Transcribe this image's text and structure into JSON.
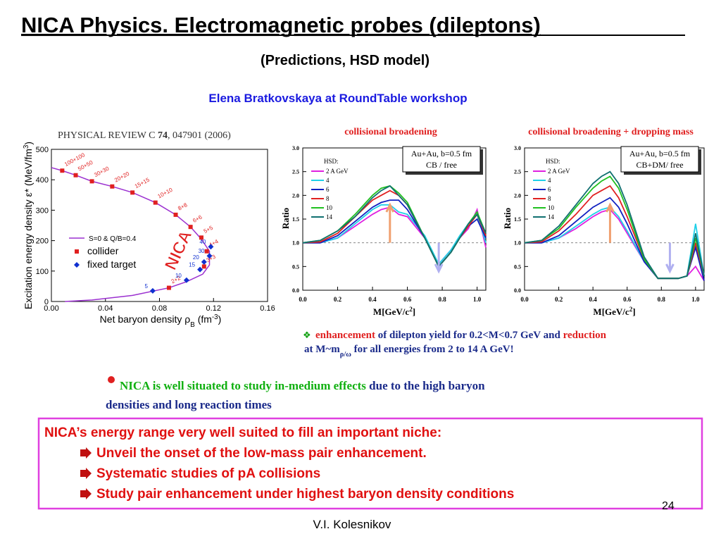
{
  "title": "NICA Physics. Electromagnetic probes (dileptons)",
  "subtitle": "(Predictions, HSD model)",
  "credit": "Elena Bratkovskaya at RoundTable workshop",
  "eos_chart": {
    "type": "scatter",
    "header": [
      "PHYSICAL REVIEW C ",
      "74",
      ", 047901 (2006)"
    ],
    "x_label": [
      "Net baryon density ρ",
      "B",
      " (fm",
      "-3",
      ")"
    ],
    "y_label": [
      "Excitation energy density ε* (MeV/fm",
      "3",
      ")"
    ],
    "xlim": [
      0,
      0.16
    ],
    "xticks": [
      {
        "value": 0,
        "label": "0.00"
      },
      0.04,
      0.08,
      0.12,
      0.16
    ],
    "ylim": [
      0,
      500
    ],
    "yticks": [
      0,
      100,
      200,
      300,
      400,
      500
    ],
    "annotation": "NICA",
    "series": [
      {
        "name": "S=0 & Q/B=0.4",
        "color": "#9b30d0",
        "kind": "line",
        "x": [
          0,
          0.008,
          0.018,
          0.03,
          0.045,
          0.06,
          0.077,
          0.092,
          0.103,
          0.111,
          0.117,
          0.117,
          0.112,
          0.1,
          0.087,
          0.06,
          0.03,
          0.01
        ],
        "values": [
          440,
          430,
          415,
          395,
          378,
          358,
          325,
          285,
          245,
          205,
          165,
          120,
          90,
          65,
          45,
          20,
          5,
          0
        ]
      },
      {
        "name": "collider",
        "color": "#e02020",
        "kind": "square",
        "x": [
          0.008,
          0.018,
          0.03,
          0.045,
          0.06,
          0.077,
          0.092,
          0.103,
          0.111,
          0.115,
          0.113,
          0.087
        ],
        "values": [
          430,
          415,
          395,
          378,
          358,
          325,
          285,
          245,
          210,
          165,
          115,
          45
        ],
        "point_labels": [
          "100+100",
          "50+50",
          "30+30",
          "20+20",
          "15+15",
          "10+10",
          "8+8",
          "6+6",
          "5+5",
          "4+4",
          "3+3",
          "2+2"
        ]
      },
      {
        "name": "fixed target",
        "color": "#1030d0",
        "kind": "diamond",
        "x": [
          0.118,
          0.117,
          0.113,
          0.11,
          0.1,
          0.075
        ],
        "values": [
          180,
          150,
          130,
          105,
          70,
          35
        ],
        "point_labels": [
          "40",
          "30",
          "20",
          "15",
          "10",
          "5"
        ]
      }
    ]
  },
  "ratio_charts": [
    {
      "type": "line",
      "title": "collisional broadening",
      "box": [
        "Au+Au, b=0.5 fm",
        "CB / free"
      ],
      "legend_title": "HSD:",
      "x_label": [
        "M[GeV/c",
        "2",
        "]"
      ],
      "y_label": "Ratio",
      "xlim": [
        0,
        1.05
      ],
      "xticks": [
        {
          "value": 0,
          "label": "0.0"
        },
        0.2,
        0.4,
        0.6,
        0.8,
        {
          "value": 1,
          "label": "1.0"
        }
      ],
      "ylim": [
        0,
        3
      ],
      "yticks": [
        {
          "value": 0,
          "label": "0.0"
        },
        0.5,
        {
          "value": 1,
          "label": "1.0"
        },
        1.5,
        {
          "value": 2,
          "label": "2.0"
        },
        2.5,
        {
          "value": 3,
          "label": "3.0"
        }
      ],
      "x": [
        0,
        0.1,
        0.2,
        0.3,
        0.4,
        0.45,
        0.5,
        0.55,
        0.6,
        0.7,
        0.78,
        0.85,
        0.9,
        0.95,
        1.0,
        1.05
      ],
      "series": [
        {
          "name": "2 A GeV",
          "color": "#e020e0",
          "values": [
            1.0,
            1.0,
            1.1,
            1.35,
            1.6,
            1.7,
            1.75,
            1.6,
            1.55,
            1.1,
            0.55,
            0.85,
            1.1,
            1.3,
            1.7,
            0.9
          ]
        },
        {
          "name": "4",
          "color": "#20d0e8",
          "values": [
            1.0,
            1.0,
            1.1,
            1.4,
            1.7,
            1.8,
            1.8,
            1.65,
            1.6,
            1.15,
            0.55,
            0.85,
            1.15,
            1.4,
            1.6,
            1.0
          ]
        },
        {
          "name": "6",
          "color": "#1020c0",
          "values": [
            1.0,
            1.0,
            1.15,
            1.45,
            1.75,
            1.85,
            1.9,
            1.9,
            1.7,
            1.1,
            0.5,
            0.8,
            1.1,
            1.35,
            1.5,
            1.1
          ]
        },
        {
          "name": "8",
          "color": "#e02020",
          "values": [
            1.0,
            1.02,
            1.2,
            1.55,
            1.9,
            2.0,
            2.1,
            2.0,
            1.8,
            1.1,
            0.5,
            0.8,
            1.1,
            1.35,
            1.6,
            1.15
          ]
        },
        {
          "name": "10",
          "color": "#20c020",
          "values": [
            1.0,
            1.05,
            1.25,
            1.6,
            2.0,
            2.15,
            2.2,
            2.05,
            1.85,
            1.1,
            0.5,
            0.8,
            1.1,
            1.4,
            1.65,
            1.2
          ]
        },
        {
          "name": "14",
          "color": "#107070",
          "values": [
            1.0,
            1.05,
            1.25,
            1.55,
            1.95,
            2.1,
            2.2,
            2.0,
            1.8,
            1.1,
            0.5,
            0.8,
            1.1,
            1.4,
            1.6,
            1.2
          ]
        }
      ]
    },
    {
      "type": "line",
      "title": "collisional broadening + dropping mass",
      "box": [
        "Au+Au, b=0.5 fm",
        "CB+DM/ free"
      ],
      "legend_title": "HSD:",
      "x_label": [
        "M[GeV/c",
        "2",
        "]"
      ],
      "y_label": "Ratio",
      "xlim": [
        0,
        1.05
      ],
      "xticks": [
        {
          "value": 0,
          "label": "0.0"
        },
        0.2,
        0.4,
        0.6,
        0.8,
        {
          "value": 1,
          "label": "1.0"
        }
      ],
      "ylim": [
        0,
        3
      ],
      "yticks": [
        {
          "value": 0,
          "label": "0.0"
        },
        0.5,
        {
          "value": 1,
          "label": "1.0"
        },
        1.5,
        {
          "value": 2,
          "label": "2.0"
        },
        2.5,
        {
          "value": 3,
          "label": "3.0"
        }
      ],
      "x": [
        0,
        0.1,
        0.2,
        0.3,
        0.4,
        0.45,
        0.5,
        0.55,
        0.6,
        0.7,
        0.78,
        0.85,
        0.9,
        0.95,
        1.0,
        1.05
      ],
      "series": [
        {
          "name": "2 A GeV",
          "color": "#e020e0",
          "values": [
            1.0,
            1.0,
            1.1,
            1.3,
            1.55,
            1.65,
            1.7,
            1.5,
            1.2,
            0.6,
            0.25,
            0.25,
            0.25,
            0.3,
            0.5,
            0.2
          ]
        },
        {
          "name": "4",
          "color": "#20d0e8",
          "values": [
            1.0,
            1.0,
            1.1,
            1.35,
            1.6,
            1.7,
            1.75,
            1.55,
            1.25,
            0.6,
            0.25,
            0.25,
            0.25,
            0.3,
            1.4,
            0.3
          ]
        },
        {
          "name": "6",
          "color": "#1020c0",
          "values": [
            1.0,
            1.0,
            1.15,
            1.45,
            1.75,
            1.85,
            1.95,
            1.75,
            1.4,
            0.6,
            0.25,
            0.25,
            0.25,
            0.3,
            0.9,
            0.2
          ]
        },
        {
          "name": "8",
          "color": "#e02020",
          "values": [
            1.0,
            1.02,
            1.25,
            1.6,
            2.0,
            2.1,
            2.2,
            1.95,
            1.55,
            0.65,
            0.25,
            0.25,
            0.25,
            0.3,
            1.0,
            0.3
          ]
        },
        {
          "name": "10",
          "color": "#20c020",
          "values": [
            1.0,
            1.05,
            1.3,
            1.75,
            2.15,
            2.3,
            2.4,
            2.15,
            1.7,
            0.65,
            0.25,
            0.25,
            0.25,
            0.3,
            1.1,
            0.3
          ]
        },
        {
          "name": "14",
          "color": "#107070",
          "values": [
            1.0,
            1.05,
            1.35,
            1.8,
            2.25,
            2.4,
            2.5,
            2.25,
            1.8,
            0.7,
            0.25,
            0.25,
            0.25,
            0.3,
            1.2,
            0.3
          ]
        }
      ]
    }
  ],
  "finding": {
    "line1": [
      "enhancement",
      " of dilepton yield for 0.2<M<0.7 GeV and ",
      "reduction"
    ],
    "line2": [
      "at M~m",
      "ρ/ω",
      "  for all energies from 2 to 14 A GeV!"
    ]
  },
  "nica_note": {
    "line1": [
      "NICA is well situated to study in-medium effects",
      " due to the high baryon"
    ],
    "line2": "densities and long reaction times"
  },
  "niche_box": {
    "heading": "NICA’s energy range very well suited to fill an important niche:",
    "items": [
      "Unveil the onset of the low-mass pair   enhancement.",
      "Systematic studies of pA collisions",
      "Study pair enhancement under  highest baryon density conditions"
    ]
  },
  "page_number": "24",
  "footer": "V.I. Kolesnikov"
}
